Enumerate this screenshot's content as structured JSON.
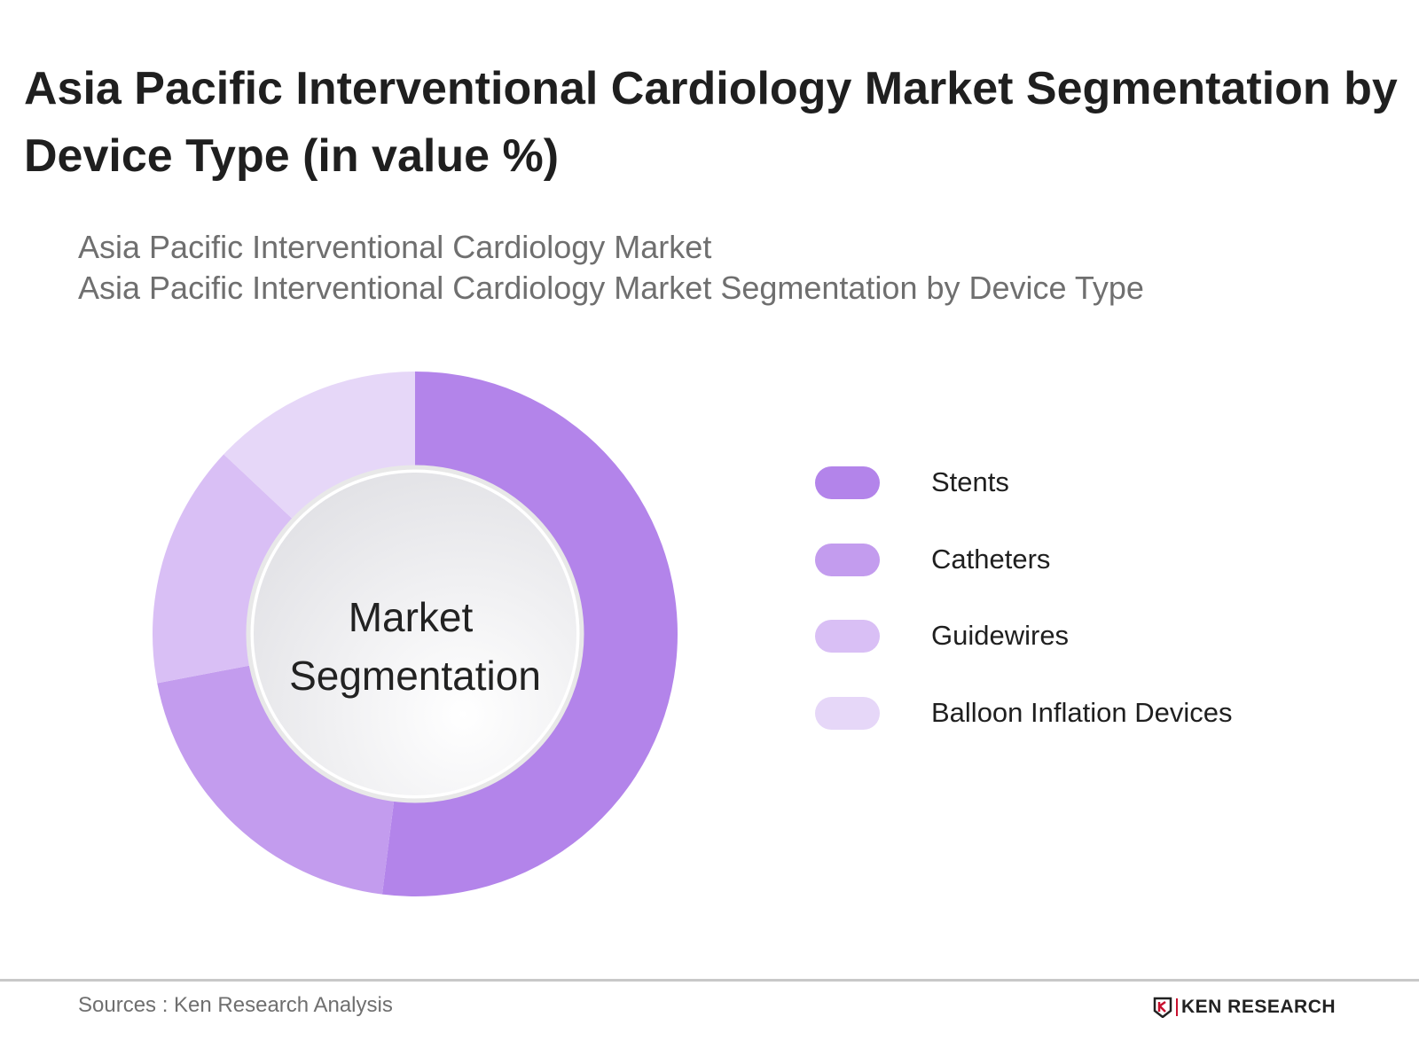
{
  "title": "Asia Pacific Interventional Cardiology Market Segmentation by Device Type (in value %)",
  "subtitle_line1": "Asia Pacific Interventional Cardiology Market",
  "subtitle_line2": "Asia Pacific Interventional Cardiology Market Segmentation by Device Type",
  "footer": {
    "source": "Sources : Ken Research Analysis",
    "logo_text": "KEN RESEARCH"
  },
  "chart_data": {
    "type": "pie",
    "variant": "donut",
    "center_label_line1": "Market",
    "center_label_line2": "Segmentation",
    "categories": [
      "Stents",
      "Catheters",
      "Guidewires",
      "Balloon Inflation Devices"
    ],
    "values": [
      52,
      20,
      15,
      13
    ],
    "colors": [
      "#b384ea",
      "#c39cee",
      "#d9bff5",
      "#e6d7f8"
    ],
    "legend_position": "right"
  }
}
